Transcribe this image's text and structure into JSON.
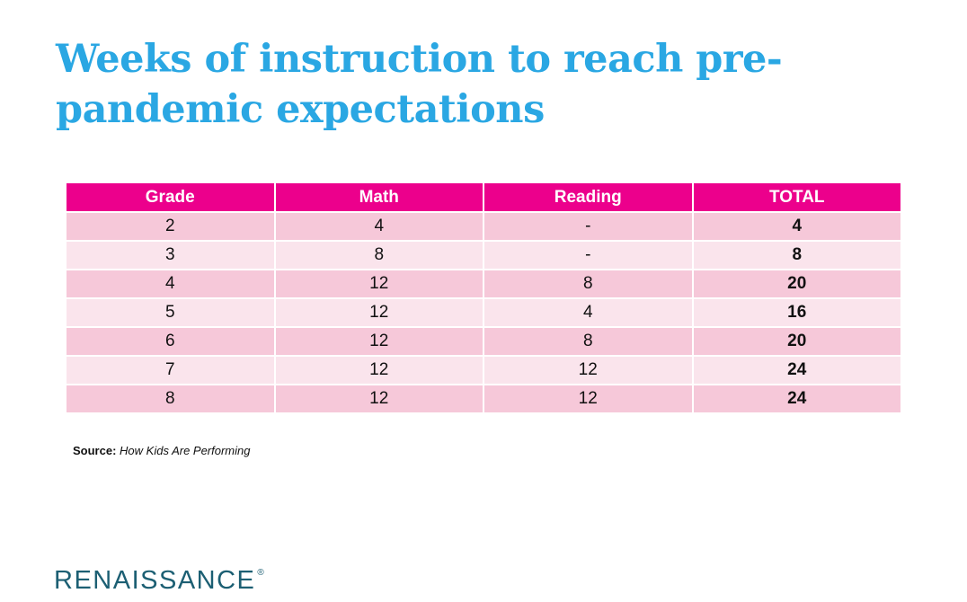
{
  "title": "Weeks of instruction to reach pre-pandemic expectations",
  "chart_data": {
    "type": "table",
    "columns": [
      "Grade",
      "Math",
      "Reading",
      "TOTAL"
    ],
    "rows": [
      [
        "2",
        "4",
        "-",
        "4"
      ],
      [
        "3",
        "8",
        "-",
        "8"
      ],
      [
        "4",
        "12",
        "8",
        "20"
      ],
      [
        "5",
        "12",
        "4",
        "16"
      ],
      [
        "6",
        "12",
        "8",
        "20"
      ],
      [
        "7",
        "12",
        "12",
        "24"
      ],
      [
        "8",
        "12",
        "12",
        "24"
      ]
    ]
  },
  "source": {
    "label": "Source:",
    "text": "How Kids Are Performing"
  },
  "logo": {
    "text": "RENAISSANCE",
    "mark": "®"
  },
  "colors": {
    "title": "#2aa7e3",
    "header": "#ec008c",
    "row_dark": "#f6c8d9",
    "row_light": "#fae4ec",
    "logo": "#1c5f73"
  }
}
